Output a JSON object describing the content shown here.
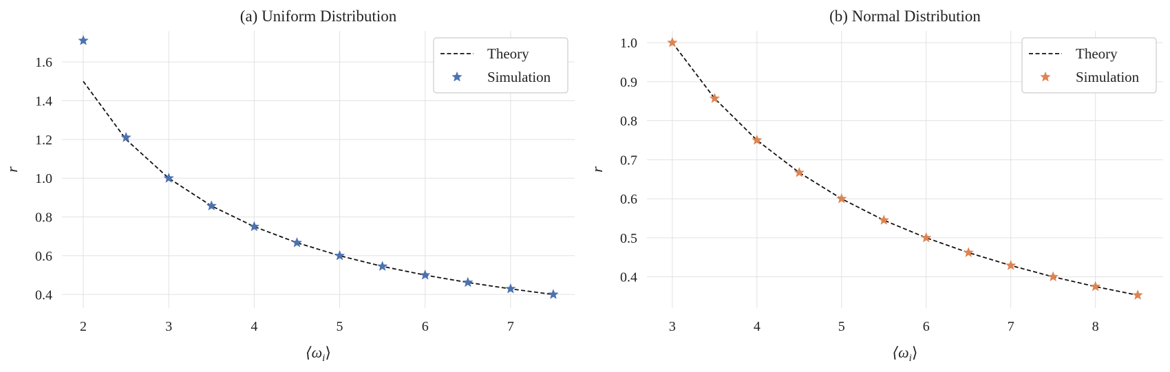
{
  "chart_data": [
    {
      "type": "line",
      "title": "(a) Uniform Distribution",
      "xlabel": "⟨ω",
      "xlabel_sub": "i",
      "xlabel_close": "⟩",
      "ylabel": "r",
      "xlim": [
        1.75,
        7.75
      ],
      "ylim": [
        0.33,
        1.76
      ],
      "xticks": [
        2,
        3,
        4,
        5,
        6,
        7
      ],
      "xtick_labels": [
        "2",
        "3",
        "4",
        "5",
        "6",
        "7"
      ],
      "yticks": [
        0.4,
        0.6,
        0.8,
        1.0,
        1.2,
        1.4,
        1.6
      ],
      "ytick_labels": [
        "0.4",
        "0.6",
        "0.8",
        "1.0",
        "1.2",
        "1.4",
        "1.6"
      ],
      "grid": true,
      "legend_position": "top-right",
      "series": [
        {
          "name": "Theory",
          "style": "dashed-line",
          "color": "#111111",
          "x": [
            2,
            2.5,
            3,
            3.5,
            4,
            4.5,
            5,
            5.5,
            6,
            6.5,
            7,
            7.5
          ],
          "y": [
            1.5,
            1.2,
            1.0,
            0.857,
            0.75,
            0.667,
            0.6,
            0.545,
            0.5,
            0.462,
            0.429,
            0.4
          ]
        },
        {
          "name": "Simulation",
          "style": "star-markers",
          "color": "#4c72b0",
          "x": [
            2,
            2.5,
            3,
            3.5,
            4,
            4.5,
            5,
            5.5,
            6,
            6.5,
            7,
            7.5
          ],
          "y": [
            1.71,
            1.21,
            1.0,
            0.857,
            0.75,
            0.667,
            0.6,
            0.545,
            0.5,
            0.462,
            0.429,
            0.4
          ]
        }
      ]
    },
    {
      "type": "line",
      "title": "(b) Normal Distribution",
      "xlabel": "⟨ω",
      "xlabel_sub": "i",
      "xlabel_close": "⟩",
      "ylabel": "r",
      "xlim": [
        2.7,
        8.8
      ],
      "ylim": [
        0.32,
        1.03
      ],
      "xticks": [
        3,
        4,
        5,
        6,
        7,
        8
      ],
      "xtick_labels": [
        "3",
        "4",
        "5",
        "6",
        "7",
        "8"
      ],
      "yticks": [
        0.4,
        0.5,
        0.6,
        0.7,
        0.8,
        0.9,
        1.0
      ],
      "ytick_labels": [
        "0.4",
        "0.5",
        "0.6",
        "0.7",
        "0.8",
        "0.9",
        "1.0"
      ],
      "grid": true,
      "legend_position": "top-right",
      "series": [
        {
          "name": "Theory",
          "style": "dashed-line",
          "color": "#111111",
          "x": [
            3,
            3.5,
            4,
            4.5,
            5,
            5.5,
            6,
            6.5,
            7,
            7.5,
            8,
            8.5
          ],
          "y": [
            1.0,
            0.857,
            0.75,
            0.667,
            0.6,
            0.545,
            0.5,
            0.462,
            0.429,
            0.4,
            0.375,
            0.353
          ]
        },
        {
          "name": "Simulation",
          "style": "star-markers",
          "color": "#dd8452",
          "x": [
            3,
            3.5,
            4,
            4.5,
            5,
            5.5,
            6,
            6.5,
            7,
            7.5,
            8,
            8.5
          ],
          "y": [
            1.0,
            0.857,
            0.75,
            0.667,
            0.6,
            0.545,
            0.5,
            0.462,
            0.429,
            0.4,
            0.375,
            0.353
          ]
        }
      ]
    }
  ]
}
